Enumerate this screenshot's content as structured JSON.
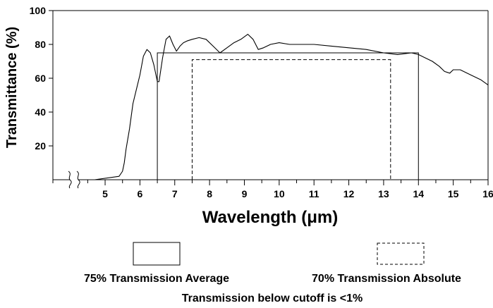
{
  "chart_data": {
    "type": "line",
    "xlabel": "Wavelength (μm)",
    "ylabel": "Transmittance (%)",
    "xlim": [
      3.5,
      16
    ],
    "ylim": [
      0,
      100
    ],
    "x_ticks": [
      5,
      6,
      7,
      8,
      9,
      10,
      11,
      12,
      13,
      14,
      15,
      16
    ],
    "y_ticks": [
      20,
      40,
      60,
      80,
      100
    ],
    "x_axis_break": true,
    "grid": false,
    "series": [
      {
        "line": "solid",
        "x": [
          4.7,
          5.4,
          5.5,
          5.55,
          5.6,
          5.7,
          5.8,
          6.0,
          6.1,
          6.2,
          6.3,
          6.4,
          6.5,
          6.55,
          6.65,
          6.75,
          6.85,
          6.95,
          7.05,
          7.15,
          7.25,
          7.35,
          7.5,
          7.7,
          7.9,
          8.1,
          8.3,
          8.5,
          8.7,
          8.9,
          9.1,
          9.25,
          9.4,
          9.55,
          9.75,
          10.0,
          10.3,
          10.7,
          11.0,
          11.5,
          12.0,
          12.5,
          13.0,
          13.4,
          13.8,
          14.0,
          14.2,
          14.4,
          14.6,
          14.75,
          14.9,
          15.0,
          15.2,
          15.5,
          15.8,
          16.0
        ],
        "y": [
          0,
          2,
          5,
          10,
          18,
          30,
          45,
          62,
          73,
          77,
          75,
          68,
          58,
          58,
          72,
          83,
          85,
          80,
          76,
          79,
          81,
          82,
          83,
          84,
          83,
          79,
          75,
          78,
          81,
          83,
          86,
          83,
          77,
          78,
          80,
          81,
          80,
          80,
          80,
          79,
          78,
          77,
          75,
          74,
          75,
          74,
          72,
          70,
          67,
          64,
          63,
          65,
          65,
          62,
          59,
          56
        ]
      }
    ],
    "rectangles": [
      {
        "style": "solid",
        "x0": 6.5,
        "x1": 14.0,
        "y_top": 75,
        "label": "75% Transmission Average"
      },
      {
        "style": "dashed",
        "x0": 7.5,
        "x1": 13.2,
        "y_top": 71,
        "label": "70% Transmission Absolute"
      }
    ],
    "footnote": "Transmission below cutoff is <1%"
  }
}
